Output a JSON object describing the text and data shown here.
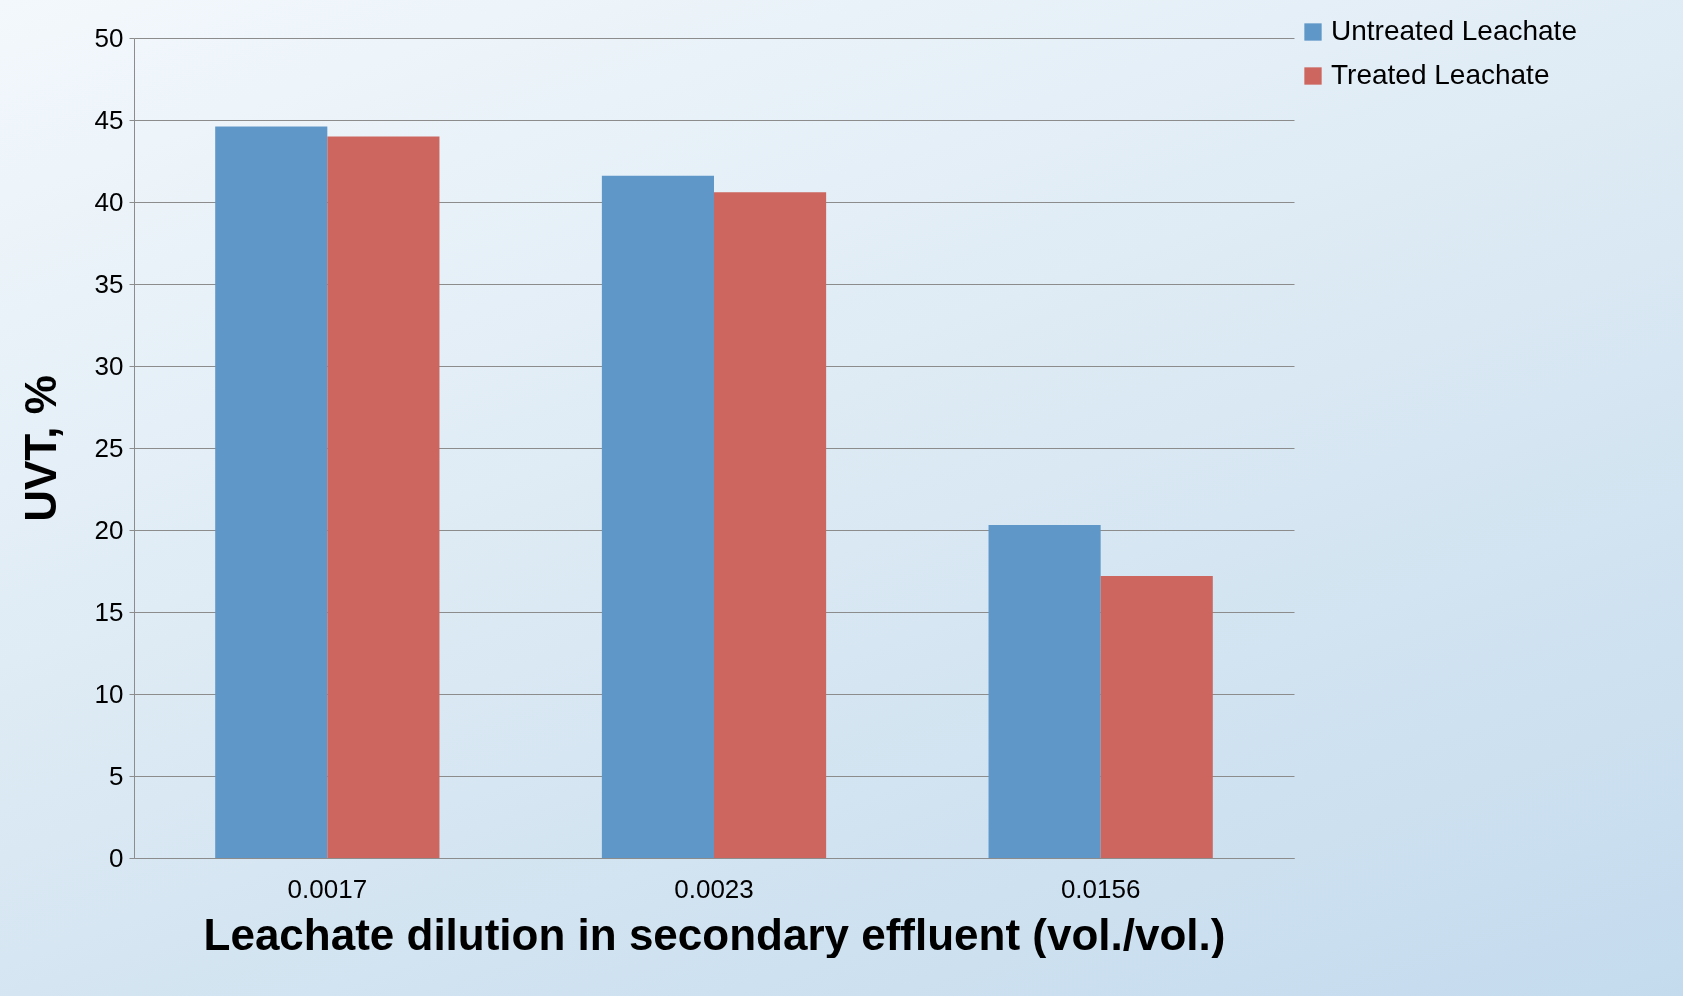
{
  "chart_data": {
    "type": "bar",
    "xlabel": "Leachate dilution in secondary effluent (vol./vol.)",
    "ylabel": "UVT, %",
    "categories": [
      "0.0017",
      "0.0023",
      "0.0156"
    ],
    "series": [
      {
        "name": "Untreated Leachate",
        "color": "#6097c9",
        "values": [
          44.6,
          41.6,
          20.3
        ]
      },
      {
        "name": "Treated Leachate",
        "color": "#cc665e",
        "values": [
          44.0,
          40.6,
          17.2
        ]
      }
    ],
    "ylim": [
      0,
      50
    ],
    "yticks": [
      0,
      5,
      10,
      15,
      20,
      25,
      30,
      35,
      40,
      45,
      50
    ],
    "grid": "y",
    "legend": "top right"
  }
}
